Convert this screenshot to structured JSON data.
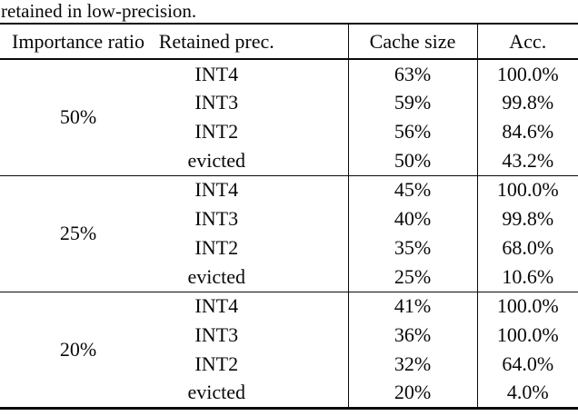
{
  "caption": "retained in low-precision.",
  "table": {
    "headers": [
      "Importance ratio",
      "Retained prec.",
      "Cache size",
      "Acc."
    ],
    "groups": [
      {
        "ratio": "50%",
        "rows": [
          {
            "prec": "INT4",
            "cache": "63%",
            "acc": "100.0%"
          },
          {
            "prec": "INT3",
            "cache": "59%",
            "acc": "99.8%"
          },
          {
            "prec": "INT2",
            "cache": "56%",
            "acc": "84.6%"
          },
          {
            "prec": "evicted",
            "cache": "50%",
            "acc": "43.2%"
          }
        ]
      },
      {
        "ratio": "25%",
        "rows": [
          {
            "prec": "INT4",
            "cache": "45%",
            "acc": "100.0%"
          },
          {
            "prec": "INT3",
            "cache": "40%",
            "acc": "99.8%"
          },
          {
            "prec": "INT2",
            "cache": "35%",
            "acc": "68.0%"
          },
          {
            "prec": "evicted",
            "cache": "25%",
            "acc": "10.6%"
          }
        ]
      },
      {
        "ratio": "20%",
        "rows": [
          {
            "prec": "INT4",
            "cache": "41%",
            "acc": "100.0%"
          },
          {
            "prec": "INT3",
            "cache": "36%",
            "acc": "100.0%"
          },
          {
            "prec": "INT2",
            "cache": "32%",
            "acc": "64.0%"
          },
          {
            "prec": "evicted",
            "cache": "20%",
            "acc": "4.0%"
          }
        ]
      }
    ]
  },
  "colors": {
    "text": "#080808",
    "rule": "#0a0a0a",
    "background": "#ffffff"
  }
}
